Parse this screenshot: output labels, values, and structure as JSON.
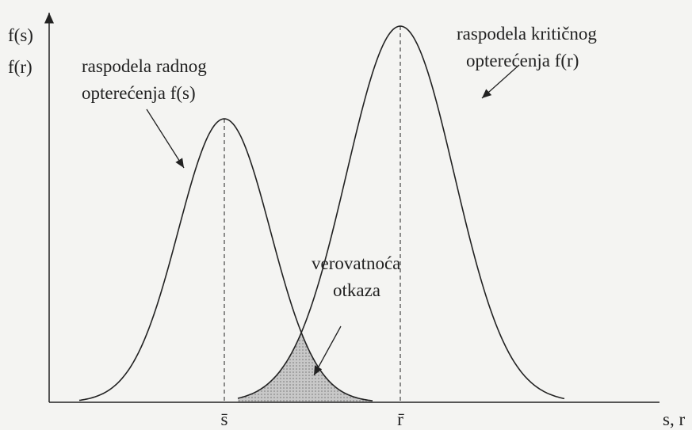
{
  "axes": {
    "y_label_1": "f(s)",
    "y_label_2": "f(r)",
    "x_label": "s, r"
  },
  "curves": [
    {
      "label_line_1": "raspodela radnog",
      "label_line_2": "opterećenja f(s)",
      "mean_label": "s̄"
    },
    {
      "label_line_1": "raspodela kritičnog",
      "label_line_2": "opterećenja f(r)",
      "mean_label": "r̄"
    }
  ],
  "overlap": {
    "label_line_1": "verovatnoća",
    "label_line_2": "otkaza"
  }
}
